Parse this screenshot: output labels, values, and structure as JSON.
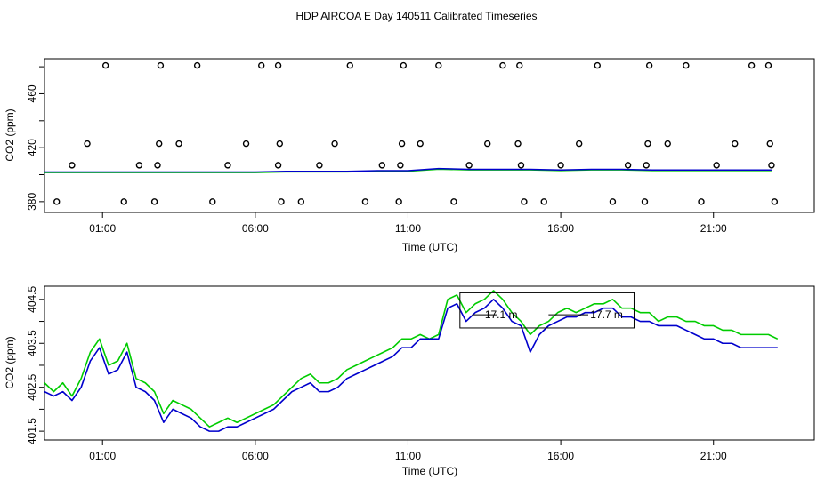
{
  "title": "HDP AIRCOA E  Day 140511  Calibrated Timeseries",
  "colors": {
    "green": "#00cc00",
    "blue": "#0000cc",
    "axis": "#000000"
  },
  "chart_data": [
    {
      "type": "scatter",
      "xlabel": "Time (UTC)",
      "ylabel": "CO2 (ppm)",
      "xlim": [
        -0.9,
        24.3
      ],
      "ylim": [
        372,
        486
      ],
      "x_ticks": [
        "01:00",
        "06:00",
        "11:00",
        "16:00",
        "21:00"
      ],
      "x_tick_values": [
        1,
        6,
        11,
        16,
        21
      ],
      "y_ticks": [
        "380",
        "420",
        "460"
      ],
      "y_tick_values": [
        380,
        420,
        460
      ],
      "y_minor_ticks": [
        380,
        400,
        420,
        440,
        460,
        480
      ],
      "points": [
        [
          -0.5,
          380
        ],
        [
          0.0,
          407
        ],
        [
          0.5,
          423
        ],
        [
          1.1,
          481
        ],
        [
          1.7,
          380
        ],
        [
          2.2,
          407
        ],
        [
          2.7,
          380
        ],
        [
          2.8,
          407
        ],
        [
          2.85,
          423
        ],
        [
          2.9,
          481
        ],
        [
          3.5,
          423
        ],
        [
          4.1,
          481
        ],
        [
          4.6,
          380
        ],
        [
          5.1,
          407
        ],
        [
          5.7,
          423
        ],
        [
          6.2,
          481
        ],
        [
          6.75,
          407
        ],
        [
          6.8,
          423
        ],
        [
          6.75,
          481
        ],
        [
          6.85,
          380
        ],
        [
          7.5,
          380
        ],
        [
          8.1,
          407
        ],
        [
          8.6,
          423
        ],
        [
          9.1,
          481
        ],
        [
          9.6,
          380
        ],
        [
          10.15,
          407
        ],
        [
          10.7,
          380
        ],
        [
          10.75,
          407
        ],
        [
          10.8,
          423
        ],
        [
          10.85,
          481
        ],
        [
          11.4,
          423
        ],
        [
          12.0,
          481
        ],
        [
          12.5,
          380
        ],
        [
          13.0,
          407
        ],
        [
          13.6,
          423
        ],
        [
          14.1,
          481
        ],
        [
          14.6,
          423
        ],
        [
          14.65,
          481
        ],
        [
          14.7,
          407
        ],
        [
          14.8,
          380
        ],
        [
          15.45,
          380
        ],
        [
          16.0,
          407
        ],
        [
          16.6,
          423
        ],
        [
          17.2,
          481
        ],
        [
          17.7,
          380
        ],
        [
          18.2,
          407
        ],
        [
          18.75,
          380
        ],
        [
          18.8,
          407
        ],
        [
          18.85,
          423
        ],
        [
          18.9,
          481
        ],
        [
          19.5,
          423
        ],
        [
          20.1,
          481
        ],
        [
          20.6,
          380
        ],
        [
          21.1,
          407
        ],
        [
          21.7,
          423
        ],
        [
          22.25,
          481
        ],
        [
          22.8,
          481
        ],
        [
          22.85,
          423
        ],
        [
          22.9,
          407
        ],
        [
          23.0,
          380
        ]
      ],
      "line": {
        "x": [
          -0.9,
          0,
          1,
          2,
          3,
          4,
          5,
          6,
          7,
          8,
          9,
          10,
          11,
          12,
          13,
          14,
          15,
          16,
          17,
          18,
          19,
          20,
          21,
          22,
          22.9
        ],
        "y": [
          402,
          402,
          402,
          402,
          402,
          402,
          402,
          402,
          402.5,
          402.5,
          402.5,
          403,
          403,
          404.5,
          404,
          404,
          404,
          403.5,
          404,
          404,
          403.5,
          403.5,
          403.5,
          403.5,
          403.5
        ]
      }
    },
    {
      "type": "line",
      "xlabel": "Time (UTC)",
      "ylabel": "CO2 (ppm)",
      "xlim": [
        -0.9,
        24.3
      ],
      "ylim": [
        401.3,
        404.8
      ],
      "x_ticks": [
        "01:00",
        "06:00",
        "11:00",
        "16:00",
        "21:00"
      ],
      "x_tick_values": [
        1,
        6,
        11,
        16,
        21
      ],
      "y_ticks": [
        "401.5",
        "402.5",
        "403.5",
        "404.5"
      ],
      "y_tick_values": [
        401.5,
        402.5,
        403.5,
        404.5
      ],
      "y_minor_ticks": [
        401.5,
        402,
        402.5,
        403,
        403.5,
        404,
        404.5
      ],
      "annotation": {
        "labels": [
          "17.1 m",
          "17.7 m"
        ],
        "label_x": [
          12.55,
          16.0
        ],
        "x_range": [
          12.7,
          18.4
        ],
        "y_range": [
          403.85,
          404.65
        ],
        "arrow_y": 404.15
      },
      "series": [
        {
          "color": "#00cc00",
          "x": [
            -0.9,
            -0.6,
            -0.3,
            0,
            0.3,
            0.6,
            0.9,
            1.2,
            1.5,
            1.8,
            2.1,
            2.4,
            2.7,
            3.0,
            3.3,
            3.6,
            3.9,
            4.2,
            4.5,
            4.8,
            5.1,
            5.4,
            5.7,
            6.0,
            6.3,
            6.6,
            6.9,
            7.2,
            7.5,
            7.8,
            8.1,
            8.4,
            8.7,
            9.0,
            9.3,
            9.6,
            9.9,
            10.2,
            10.5,
            10.8,
            11.1,
            11.4,
            11.7,
            12.0,
            12.3,
            12.6,
            12.9,
            13.2,
            13.5,
            13.8,
            14.1,
            14.4,
            14.7,
            15.0,
            15.3,
            15.6,
            15.9,
            16.2,
            16.5,
            16.8,
            17.1,
            17.4,
            17.7,
            18.0,
            18.3,
            18.6,
            18.9,
            19.2,
            19.5,
            19.8,
            20.1,
            20.4,
            20.7,
            21.0,
            21.3,
            21.6,
            21.9,
            22.2,
            22.5,
            22.8,
            23.1
          ],
          "y": [
            402.6,
            402.4,
            402.6,
            402.3,
            402.7,
            403.3,
            403.6,
            403.0,
            403.1,
            403.5,
            402.7,
            402.6,
            402.4,
            401.9,
            402.2,
            402.1,
            402.0,
            401.8,
            401.6,
            401.7,
            401.8,
            401.7,
            401.8,
            401.9,
            402.0,
            402.1,
            402.3,
            402.5,
            402.7,
            402.8,
            402.6,
            402.6,
            402.7,
            402.9,
            403.0,
            403.1,
            403.2,
            403.3,
            403.4,
            403.6,
            403.6,
            403.7,
            403.6,
            403.7,
            404.5,
            404.6,
            404.2,
            404.4,
            404.5,
            404.7,
            404.5,
            404.2,
            404.0,
            403.7,
            403.9,
            404.0,
            404.2,
            404.3,
            404.2,
            404.3,
            404.4,
            404.4,
            404.5,
            404.3,
            404.3,
            404.2,
            404.2,
            404.0,
            404.1,
            404.1,
            404.0,
            404.0,
            403.9,
            403.9,
            403.8,
            403.8,
            403.7,
            403.7,
            403.7,
            403.7,
            403.6
          ]
        },
        {
          "color": "#0000cc",
          "x": [
            -0.9,
            -0.6,
            -0.3,
            0,
            0.3,
            0.6,
            0.9,
            1.2,
            1.5,
            1.8,
            2.1,
            2.4,
            2.7,
            3.0,
            3.3,
            3.6,
            3.9,
            4.2,
            4.5,
            4.8,
            5.1,
            5.4,
            5.7,
            6.0,
            6.3,
            6.6,
            6.9,
            7.2,
            7.5,
            7.8,
            8.1,
            8.4,
            8.7,
            9.0,
            9.3,
            9.6,
            9.9,
            10.2,
            10.5,
            10.8,
            11.1,
            11.4,
            11.7,
            12.0,
            12.3,
            12.6,
            12.9,
            13.2,
            13.5,
            13.8,
            14.1,
            14.4,
            14.7,
            15.0,
            15.3,
            15.6,
            15.9,
            16.2,
            16.5,
            16.8,
            17.1,
            17.4,
            17.7,
            18.0,
            18.3,
            18.6,
            18.9,
            19.2,
            19.5,
            19.8,
            20.1,
            20.4,
            20.7,
            21.0,
            21.3,
            21.6,
            21.9,
            22.2,
            22.5,
            22.8,
            23.1
          ],
          "y": [
            402.4,
            402.3,
            402.4,
            402.2,
            402.5,
            403.1,
            403.4,
            402.8,
            402.9,
            403.3,
            402.5,
            402.4,
            402.2,
            401.7,
            402.0,
            401.9,
            401.8,
            401.6,
            401.5,
            401.5,
            401.6,
            401.6,
            401.7,
            401.8,
            401.9,
            402.0,
            402.2,
            402.4,
            402.5,
            402.6,
            402.4,
            402.4,
            402.5,
            402.7,
            402.8,
            402.9,
            403.0,
            403.1,
            403.2,
            403.4,
            403.4,
            403.6,
            403.6,
            403.6,
            404.3,
            404.4,
            404.0,
            404.2,
            404.3,
            404.5,
            404.3,
            404.0,
            403.9,
            403.3,
            403.7,
            403.9,
            404.0,
            404.1,
            404.1,
            404.2,
            404.2,
            404.3,
            404.3,
            404.1,
            404.1,
            404.0,
            404.0,
            403.9,
            403.9,
            403.9,
            403.8,
            403.7,
            403.6,
            403.6,
            403.5,
            403.5,
            403.4,
            403.4,
            403.4,
            403.4,
            403.4
          ]
        }
      ]
    }
  ]
}
